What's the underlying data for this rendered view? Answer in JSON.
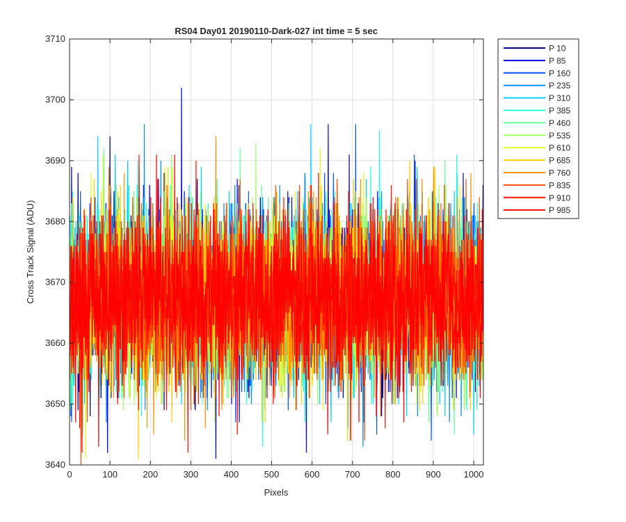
{
  "chart_data": {
    "type": "line",
    "title": "RS04 Day01 20190110-Dark-027 int time = 5 sec",
    "xlabel": "Pixels",
    "ylabel": "Cross Track Signal (ADU)",
    "xlim": [
      0,
      1024
    ],
    "ylim": [
      3640,
      3710
    ],
    "x_ticks": [
      0,
      100,
      200,
      300,
      400,
      500,
      600,
      700,
      800,
      900,
      1000
    ],
    "y_ticks": [
      3640,
      3650,
      3660,
      3670,
      3680,
      3690,
      3700,
      3710
    ],
    "grid": true,
    "legend_position": "outside-top-right",
    "x_range": [
      1,
      1024
    ],
    "noise": {
      "mean": 3667.5,
      "std": 7.0
    },
    "series": [
      {
        "name": "P 10",
        "color": "#00008f",
        "peaks": []
      },
      {
        "name": "P 85",
        "color": "#0000e0",
        "peaks": [
          [
            277,
            3702
          ],
          [
            362,
            3641
          ],
          [
            640,
            3696
          ],
          [
            586,
            3642
          ],
          [
            94,
            3642
          ]
        ]
      },
      {
        "name": "P 160",
        "color": "#0050ff",
        "peaks": [
          [
            708,
            3696
          ],
          [
            5,
            3647
          ],
          [
            760,
            3645
          ]
        ]
      },
      {
        "name": "P 235",
        "color": "#0090ff",
        "peaks": [
          [
            940,
            3647
          ]
        ]
      },
      {
        "name": "P 310",
        "color": "#00d0ff",
        "peaks": [
          [
            70,
            3694
          ],
          [
            597,
            3696
          ],
          [
            1000,
            3645
          ]
        ]
      },
      {
        "name": "P 385",
        "color": "#20ffdf",
        "peaks": [
          [
            767,
            3695
          ],
          [
            958,
            3691
          ],
          [
            478,
            3643
          ]
        ]
      },
      {
        "name": "P 460",
        "color": "#60ff9f",
        "peaks": [
          [
            85,
            3692
          ],
          [
            33,
            3645
          ]
        ]
      },
      {
        "name": "P 535",
        "color": "#9fff60",
        "peaks": [
          [
            252,
            3691
          ],
          [
            910,
            3648
          ]
        ]
      },
      {
        "name": "P 610",
        "color": "#dfff20",
        "peaks": [
          [
            620,
            3692
          ],
          [
            40,
            3641
          ]
        ]
      },
      {
        "name": "P 685",
        "color": "#ffd000",
        "peaks": [
          [
            170,
            3641
          ],
          [
            842,
            3690
          ]
        ]
      },
      {
        "name": "P 760",
        "color": "#ff9000",
        "peaks": [
          [
            362,
            3694
          ],
          [
            285,
            3644
          ]
        ]
      },
      {
        "name": "P 835",
        "color": "#ff5000",
        "peaks": [
          [
            730,
            3644
          ],
          [
            28,
            3640
          ]
        ]
      },
      {
        "name": "P 910",
        "color": "#ff1000",
        "peaks": [
          [
            172,
            3691
          ],
          [
            293,
            3642
          ]
        ]
      },
      {
        "name": "P 985",
        "color": "#ff0000",
        "peaks": [
          [
            215,
            3691
          ],
          [
            72,
            3643
          ]
        ]
      }
    ]
  }
}
